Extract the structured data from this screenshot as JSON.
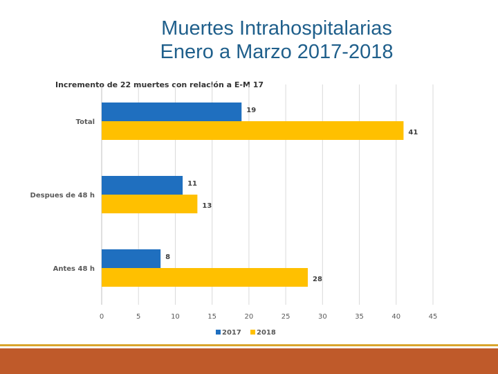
{
  "slide": {
    "title_line1": "Muertes Intrahospitalarias",
    "title_line2": "Enero a Marzo 2017-2018"
  },
  "chart_data": {
    "type": "bar",
    "orientation": "horizontal",
    "title": "Incremento de 22 muertes con relación a E-M 17",
    "categories": [
      "Total",
      "Despues de 48 h",
      "Antes 48 h"
    ],
    "series": [
      {
        "name": "2017",
        "values": [
          19,
          11,
          8
        ],
        "color": "#1f6fbf"
      },
      {
        "name": "2018",
        "values": [
          41,
          13,
          28
        ],
        "color": "#ffc000"
      }
    ],
    "xlim": [
      0,
      45
    ],
    "xticks": [
      0,
      5,
      10,
      15,
      20,
      25,
      30,
      35,
      40,
      45
    ],
    "grid": true,
    "legend": "bottom"
  }
}
